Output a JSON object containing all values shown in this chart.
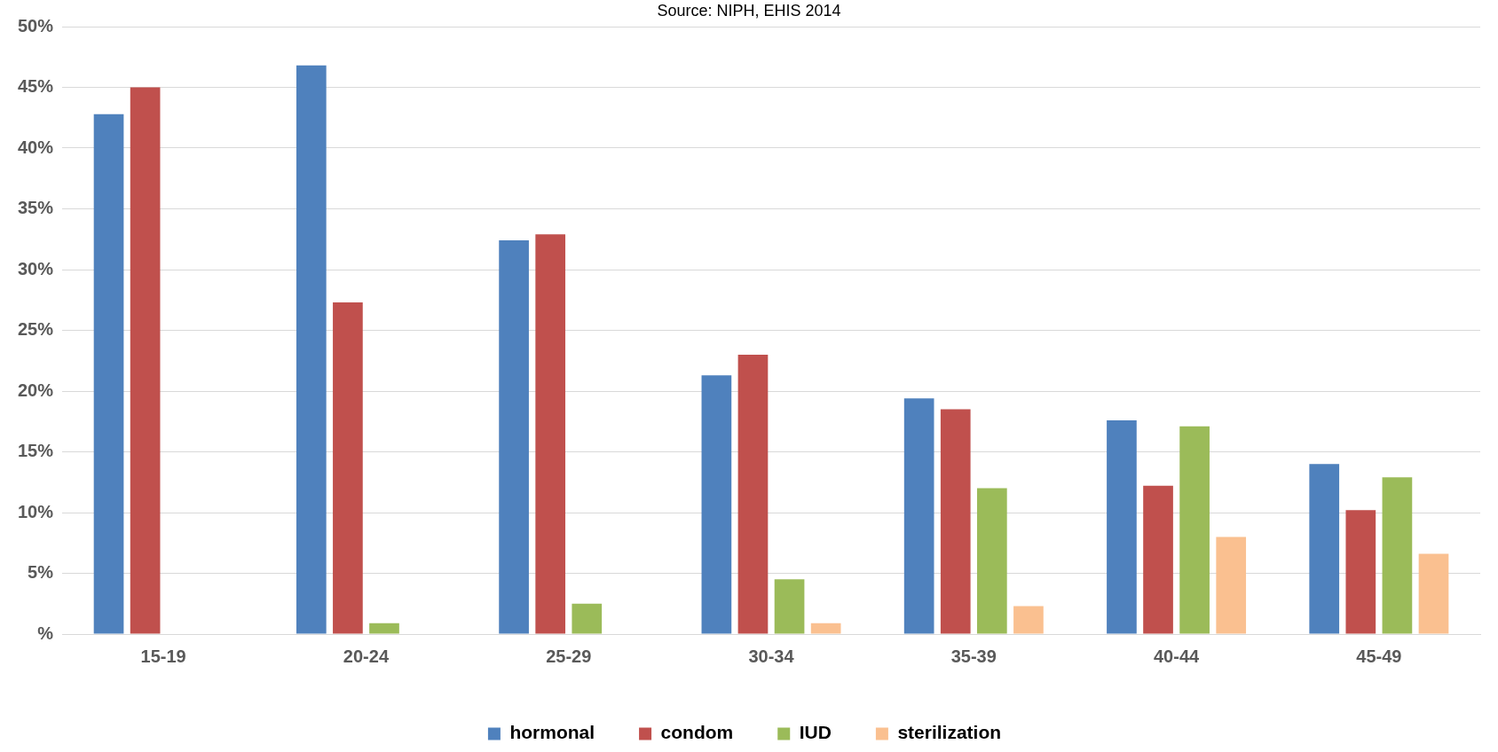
{
  "chart_data": {
    "type": "bar",
    "annotations": [
      "Source: NIPH, EHIS 2014"
    ],
    "categories": [
      "15-19",
      "20-24",
      "25-29",
      "30-34",
      "35-39",
      "40-44",
      "45-49"
    ],
    "series": [
      {
        "name": "hormonal",
        "color": "#4f81bd",
        "values": [
          42.8,
          46.8,
          32.4,
          21.3,
          19.4,
          17.6,
          14.0
        ]
      },
      {
        "name": "condom",
        "color": "#c0504d",
        "values": [
          45.0,
          27.3,
          32.9,
          23.0,
          18.5,
          12.2,
          10.2
        ]
      },
      {
        "name": "IUD",
        "color": "#9bbb59",
        "values": [
          null,
          0.9,
          2.5,
          4.5,
          12.0,
          17.1,
          12.9
        ]
      },
      {
        "name": "sterilization",
        "color": "#fac090",
        "values": [
          null,
          null,
          null,
          0.9,
          2.3,
          8.0,
          6.6
        ]
      }
    ],
    "ylim": [
      0,
      50
    ],
    "yticks": [
      {
        "value": 0,
        "label": "%"
      },
      {
        "value": 5,
        "label": "5%"
      },
      {
        "value": 10,
        "label": "10%"
      },
      {
        "value": 15,
        "label": "15%"
      },
      {
        "value": 20,
        "label": "20%"
      },
      {
        "value": 25,
        "label": "25%"
      },
      {
        "value": 30,
        "label": "30%"
      },
      {
        "value": 35,
        "label": "35%"
      },
      {
        "value": 40,
        "label": "40%"
      },
      {
        "value": 45,
        "label": "45%"
      },
      {
        "value": 50,
        "label": "50%"
      }
    ],
    "grid": "y",
    "legend": "bottom"
  }
}
